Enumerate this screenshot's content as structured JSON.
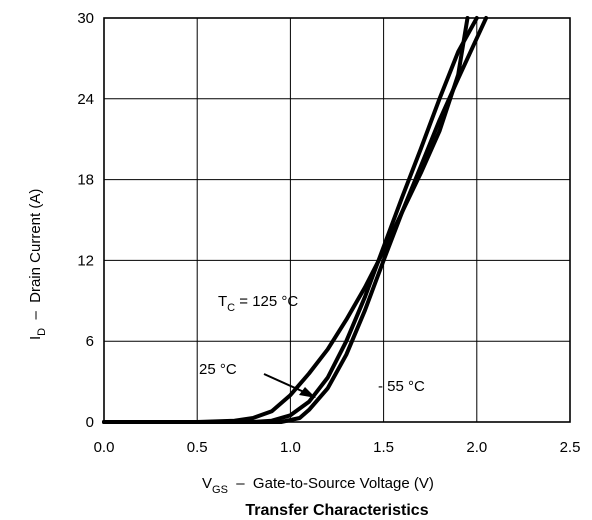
{
  "chart_data": {
    "type": "line",
    "title": "Transfer Characteristics",
    "xlabel": {
      "main": "V",
      "sub": "GS",
      "rest": "  –  Gate-to-Source Voltage (V)"
    },
    "ylabel": {
      "main": "I",
      "sub": "D",
      "rest": "  –  Drain Current (A)"
    },
    "xlim": [
      0.0,
      2.5
    ],
    "ylim": [
      0,
      30
    ],
    "x_ticks": [
      "0.0",
      "0.5",
      "1.0",
      "1.5",
      "2.0",
      "2.5"
    ],
    "y_ticks": [
      "0",
      "6",
      "12",
      "18",
      "24",
      "30"
    ],
    "grid": true,
    "series": [
      {
        "name": "TC = 125 °C",
        "x": [
          0.0,
          0.5,
          0.7,
          0.8,
          0.9,
          1.0,
          1.1,
          1.2,
          1.3,
          1.4,
          1.5,
          1.6,
          1.7,
          1.8,
          1.9,
          1.95
        ],
        "y": [
          0,
          0,
          0.1,
          0.3,
          0.8,
          2.0,
          3.6,
          5.4,
          7.6,
          10.0,
          12.7,
          15.6,
          18.5,
          21.6,
          25.8,
          30
        ]
      },
      {
        "name": "25 °C",
        "x": [
          0.0,
          0.8,
          0.9,
          1.0,
          1.1,
          1.2,
          1.3,
          1.4,
          1.5,
          1.6,
          1.7,
          1.8,
          1.9,
          2.0
        ],
        "y": [
          0,
          0,
          0.1,
          0.5,
          1.5,
          3.3,
          6.0,
          9.3,
          13.0,
          16.7,
          20.3,
          24.0,
          27.5,
          30
        ]
      },
      {
        "name": "- 55 °C",
        "x": [
          0.0,
          0.95,
          1.05,
          1.1,
          1.2,
          1.3,
          1.4,
          1.5,
          1.6,
          1.7,
          1.8,
          1.9,
          2.0,
          2.05
        ],
        "y": [
          0,
          0,
          0.3,
          0.9,
          2.5,
          5.0,
          8.3,
          12.0,
          15.6,
          19.0,
          22.4,
          25.5,
          28.5,
          30
        ]
      }
    ],
    "annotations": {
      "tc125": {
        "main": "T",
        "sub": "C",
        "rest": " = 125 °C"
      },
      "t25": "25 °C",
      "tm55": "- 55 °C"
    }
  }
}
